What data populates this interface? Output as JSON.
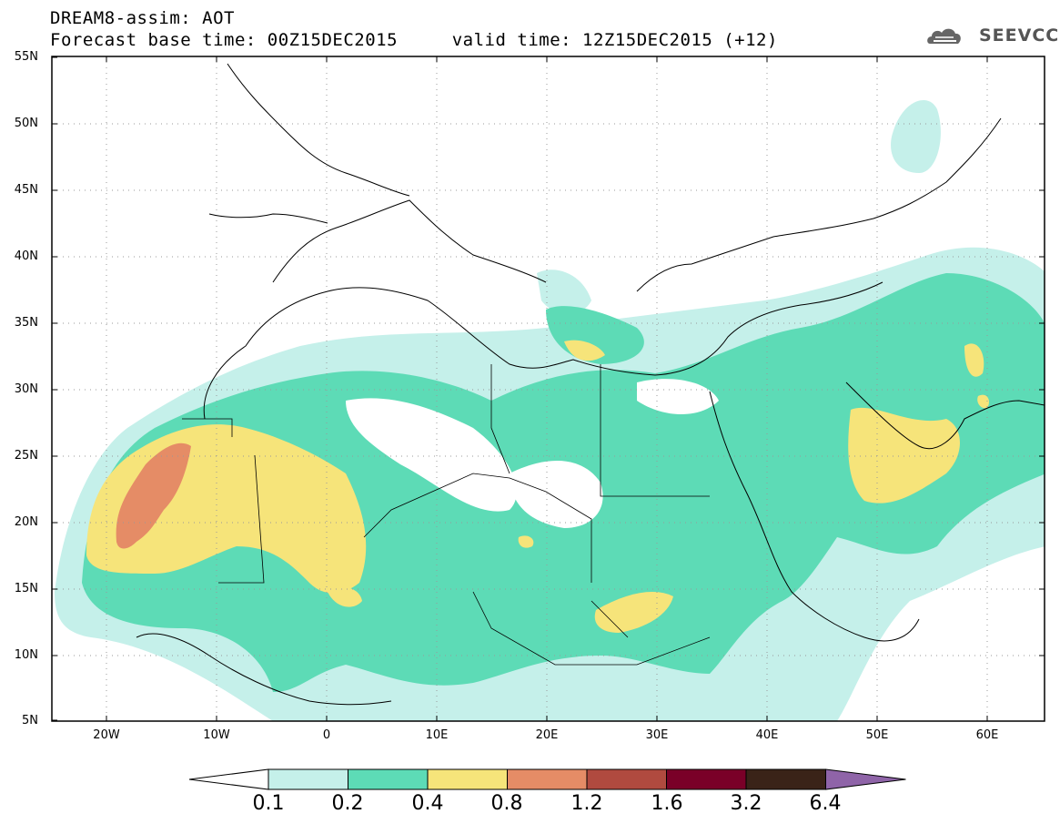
{
  "header": {
    "title_line1": "DREAM8-assim: AOT",
    "title_line2": "Forecast base time: 00Z15DEC2015     valid time: 12Z15DEC2015 (+12)",
    "logo_text": "SEEVCCC"
  },
  "map": {
    "lon_range": [
      -25,
      65
    ],
    "lat_range": [
      5,
      55
    ],
    "y_ticks": [
      "55N",
      "50N",
      "45N",
      "40N",
      "35N",
      "30N",
      "25N",
      "20N",
      "15N",
      "10N",
      "5N"
    ],
    "x_ticks": [
      "20W",
      "10W",
      "0",
      "10E",
      "20E",
      "30E",
      "40E",
      "50E",
      "60E"
    ],
    "gridlines": "dotted"
  },
  "legend": {
    "labels": [
      "0.1",
      "0.2",
      "0.4",
      "0.8",
      "1.2",
      "1.6",
      "3.2",
      "6.4"
    ],
    "colors": {
      "below": "#ffffff",
      "c1": "#c5f0ea",
      "c2": "#5ddbb6",
      "c3": "#f6e47a",
      "c4": "#e58c66",
      "c5": "#b04a3f",
      "c6": "#7a0028",
      "c7": "#3a2318",
      "above": "#8f64a8"
    }
  }
}
